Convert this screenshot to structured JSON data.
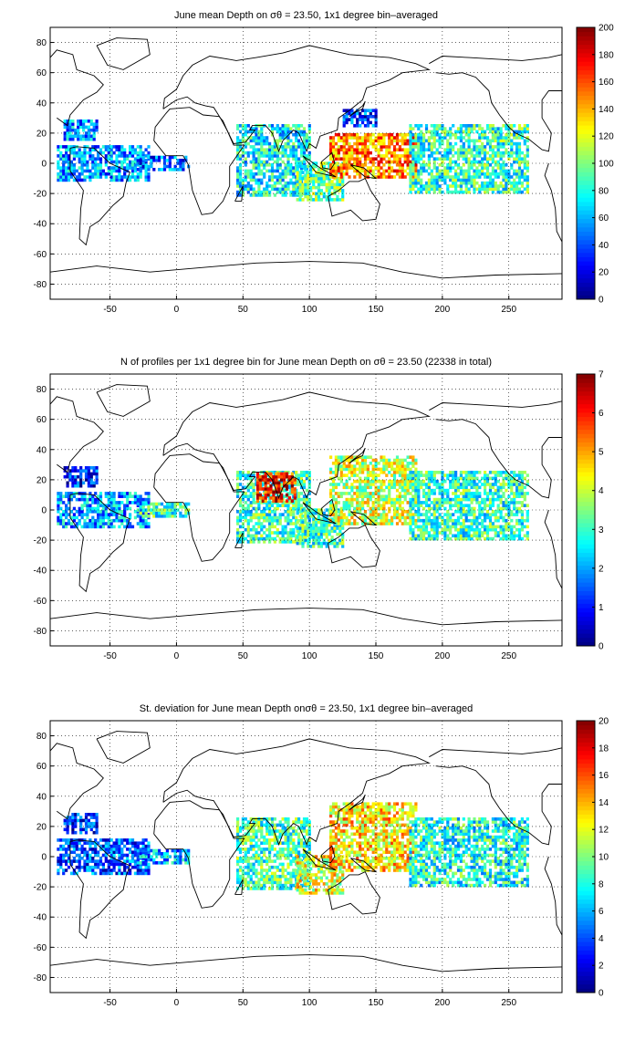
{
  "chart_data": [
    {
      "type": "heatmap",
      "title": "June mean Depth on σθ = 23.50, 1x1 degree bin–averaged",
      "xlabel": "",
      "ylabel": "",
      "xlim": [
        -95,
        290
      ],
      "ylim": [
        -90,
        90
      ],
      "xticks": [
        -50,
        0,
        50,
        100,
        150,
        200,
        250
      ],
      "yticks": [
        80,
        60,
        40,
        20,
        0,
        -20,
        -40,
        -60,
        -80
      ],
      "grid": true,
      "colorbar": {
        "min": 0,
        "max": 200,
        "ticks": [
          0,
          20,
          40,
          60,
          80,
          100,
          120,
          140,
          160,
          180,
          200
        ]
      },
      "regions": [
        {
          "x": [
            -90,
            -20
          ],
          "y": [
            -12,
            12
          ],
          "value": 55
        },
        {
          "x": [
            -30,
            10
          ],
          "y": [
            -5,
            5
          ],
          "value": 45
        },
        {
          "x": [
            -85,
            -60
          ],
          "y": [
            15,
            28
          ],
          "value": 55
        },
        {
          "x": [
            45,
            100
          ],
          "y": [
            -22,
            25
          ],
          "value": 75
        },
        {
          "x": [
            90,
            125
          ],
          "y": [
            -25,
            0
          ],
          "value": 95
        },
        {
          "x": [
            115,
            180
          ],
          "y": [
            -10,
            20
          ],
          "value": 150
        },
        {
          "x": [
            125,
            150
          ],
          "y": [
            24,
            36
          ],
          "value": 35
        },
        {
          "x": [
            175,
            265
          ],
          "y": [
            -20,
            25
          ],
          "value": 85
        }
      ]
    },
    {
      "type": "heatmap",
      "title": "N of profiles per 1x1 degree bin for June mean Depth on σθ = 23.50 (22338 in total)",
      "xlabel": "",
      "ylabel": "",
      "xlim": [
        -95,
        290
      ],
      "ylim": [
        -90,
        90
      ],
      "xticks": [
        -50,
        0,
        50,
        100,
        150,
        200,
        250
      ],
      "yticks": [
        80,
        60,
        40,
        20,
        0,
        -20,
        -40,
        -60,
        -80
      ],
      "grid": true,
      "colorbar": {
        "min": 0,
        "max": 7,
        "ticks": [
          0,
          1,
          2,
          3,
          4,
          5,
          6,
          7
        ]
      },
      "regions": [
        {
          "x": [
            -90,
            -20
          ],
          "y": [
            -12,
            12
          ],
          "value": 2
        },
        {
          "x": [
            -30,
            10
          ],
          "y": [
            -5,
            5
          ],
          "value": 3
        },
        {
          "x": [
            -85,
            -60
          ],
          "y": [
            15,
            28
          ],
          "value": 1
        },
        {
          "x": [
            45,
            100
          ],
          "y": [
            -22,
            25
          ],
          "value": 3
        },
        {
          "x": [
            60,
            90
          ],
          "y": [
            5,
            25
          ],
          "value": 6
        },
        {
          "x": [
            90,
            125
          ],
          "y": [
            -25,
            0
          ],
          "value": 3
        },
        {
          "x": [
            115,
            180
          ],
          "y": [
            -10,
            35
          ],
          "value": 4
        },
        {
          "x": [
            175,
            265
          ],
          "y": [
            -20,
            25
          ],
          "value": 3
        }
      ]
    },
    {
      "type": "heatmap",
      "title": "St. deviation for June mean Depth onσθ = 23.50, 1x1 degree bin–averaged",
      "xlabel": "",
      "ylabel": "",
      "xlim": [
        -95,
        290
      ],
      "ylim": [
        -90,
        90
      ],
      "xticks": [
        -50,
        0,
        50,
        100,
        150,
        200,
        250
      ],
      "yticks": [
        80,
        60,
        40,
        20,
        0,
        -20,
        -40,
        -60,
        -80
      ],
      "grid": true,
      "colorbar": {
        "min": 0,
        "max": 20,
        "ticks": [
          0,
          2,
          4,
          6,
          8,
          10,
          12,
          14,
          16,
          18,
          20
        ]
      },
      "regions": [
        {
          "x": [
            -90,
            -20
          ],
          "y": [
            -12,
            12
          ],
          "value": 4
        },
        {
          "x": [
            -30,
            10
          ],
          "y": [
            -5,
            5
          ],
          "value": 6
        },
        {
          "x": [
            -85,
            -60
          ],
          "y": [
            15,
            28
          ],
          "value": 3
        },
        {
          "x": [
            45,
            100
          ],
          "y": [
            -22,
            25
          ],
          "value": 9
        },
        {
          "x": [
            90,
            125
          ],
          "y": [
            -25,
            0
          ],
          "value": 12
        },
        {
          "x": [
            115,
            180
          ],
          "y": [
            -10,
            35
          ],
          "value": 13
        },
        {
          "x": [
            175,
            265
          ],
          "y": [
            -20,
            25
          ],
          "value": 8
        }
      ]
    }
  ]
}
